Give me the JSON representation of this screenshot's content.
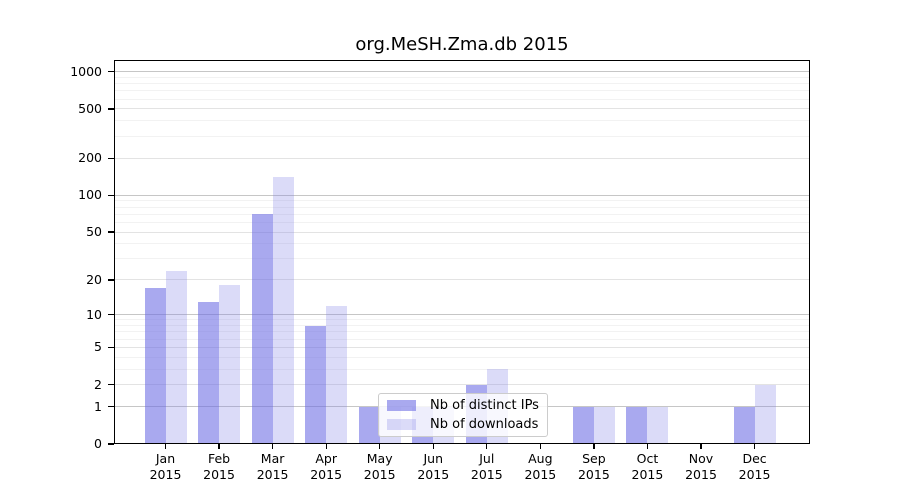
{
  "chart_data": {
    "type": "bar",
    "title": "org.MeSH.Zma.db 2015",
    "categories": [
      {
        "month": "Jan",
        "year": "2015"
      },
      {
        "month": "Feb",
        "year": "2015"
      },
      {
        "month": "Mar",
        "year": "2015"
      },
      {
        "month": "Apr",
        "year": "2015"
      },
      {
        "month": "May",
        "year": "2015"
      },
      {
        "month": "Jun",
        "year": "2015"
      },
      {
        "month": "Jul",
        "year": "2015"
      },
      {
        "month": "Aug",
        "year": "2015"
      },
      {
        "month": "Sep",
        "year": "2015"
      },
      {
        "month": "Oct",
        "year": "2015"
      },
      {
        "month": "Nov",
        "year": "2015"
      },
      {
        "month": "Dec",
        "year": "2015"
      }
    ],
    "series": [
      {
        "name": "Nb of distinct IPs",
        "color": "rgba(106,106,228,0.58)",
        "values": [
          17,
          13,
          70,
          8,
          1,
          1,
          2,
          0,
          1,
          1,
          0,
          1
        ]
      },
      {
        "name": "Nb of downloads",
        "color": "rgba(125,125,230,0.28)",
        "values": [
          24,
          18,
          140,
          12,
          1,
          1,
          3,
          0,
          1,
          1,
          0,
          2
        ]
      }
    ],
    "y_axis": {
      "scale": "log1p",
      "ylim": [
        0,
        1240
      ],
      "ticks": [
        0,
        1,
        2,
        5,
        10,
        20,
        50,
        100,
        200,
        500,
        1000
      ],
      "major_ticks": [
        1,
        10,
        100,
        1000
      ],
      "minor_ticks": [
        3,
        4,
        6,
        7,
        8,
        9,
        30,
        40,
        60,
        70,
        80,
        90,
        300,
        400,
        600,
        700,
        800,
        900
      ],
      "major_grid_color": "#c6c6c6",
      "mid_grid_color": "#e3e3e3",
      "minor_grid_color": "#f2f2f2"
    },
    "grid": "horizontal",
    "legend": {
      "position": "inside-bottom-center",
      "entries": [
        "Nb of distinct IPs",
        "Nb of downloads"
      ]
    }
  }
}
